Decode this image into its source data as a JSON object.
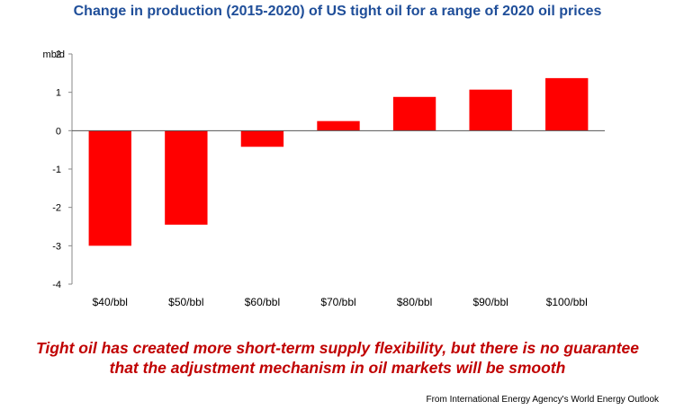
{
  "chart_data": {
    "type": "bar",
    "title": "Change in production (2015-2020) of US tight oil for a range of 2020 oil prices",
    "ylabel": "mb/d",
    "xlabel": "",
    "categories": [
      "$40/bbl",
      "$50/bbl",
      "$60/bbl",
      "$70/bbl",
      "$80/bbl",
      "$90/bbl",
      "$100/bbl"
    ],
    "values": [
      -3.0,
      -2.45,
      -0.42,
      0.25,
      0.88,
      1.07,
      1.37
    ],
    "ylim": [
      -4,
      2
    ],
    "yticks": [
      2,
      1,
      0,
      -1,
      -2,
      -3,
      -4
    ],
    "bar_color": "#ff0000",
    "grid": false,
    "legend": false
  },
  "caption": {
    "line1": "Tight oil has created more short-term supply flexibility, but there is no guarantee",
    "line2": "that the adjustment mechanism in oil markets will be smooth",
    "color": "#c00000"
  },
  "source": "From International Energy Agency's World Energy Outlook",
  "title_color": "#1f4e99"
}
